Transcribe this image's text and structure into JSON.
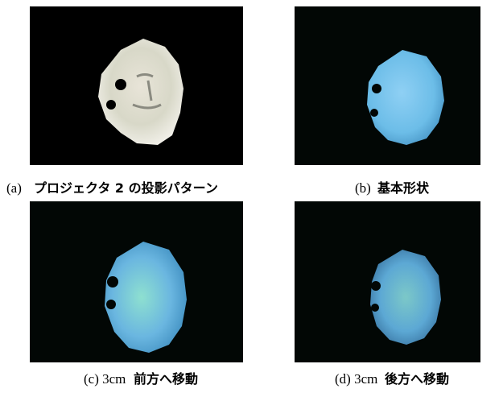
{
  "figures": [
    {
      "label": "(a)",
      "text": "プロジェクタ 2 の投影パターン"
    },
    {
      "label": "(b)",
      "text": "基本形状"
    },
    {
      "label": "(c) 3cm",
      "text": "前方へ移動"
    },
    {
      "label": "(d) 3cm",
      "text": "後方へ移動"
    }
  ]
}
